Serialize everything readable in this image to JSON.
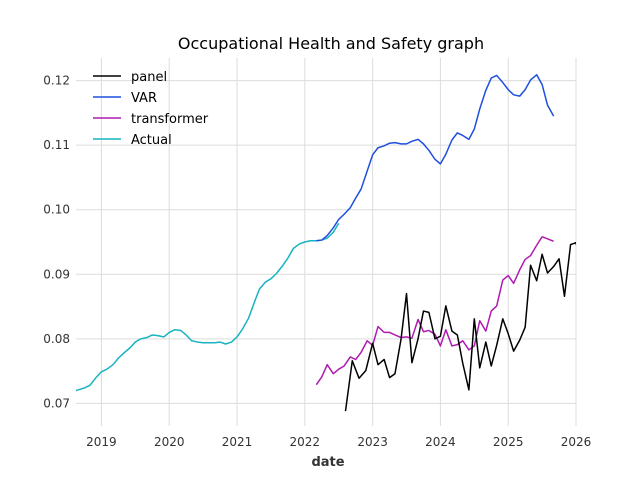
{
  "chart_data": {
    "type": "line",
    "title": "Occupational Health and Safety graph",
    "xlabel": "date",
    "ylabel": "",
    "xlim": [
      2018.625,
      2026.0
    ],
    "ylim": [
      0.0665,
      0.1235
    ],
    "x_ticks": [
      2019,
      2020,
      2021,
      2022,
      2023,
      2024,
      2025,
      2026
    ],
    "x_tick_labels": [
      "2019",
      "2020",
      "2021",
      "2022",
      "2023",
      "2024",
      "2025",
      "2026"
    ],
    "y_ticks": [
      0.07,
      0.08,
      0.09,
      0.1,
      0.11,
      0.12
    ],
    "y_tick_labels": [
      "0.07",
      "0.08",
      "0.09",
      "0.10",
      "0.11",
      "0.12"
    ],
    "grid": true,
    "legend_position": "top-left",
    "series": [
      {
        "name": "panel",
        "color": "#000000",
        "points": [
          [
            2022.6,
            0.0688
          ],
          [
            2022.7,
            0.0766
          ],
          [
            2022.8,
            0.0739
          ],
          [
            2022.9,
            0.0751
          ],
          [
            2023.0,
            0.0793
          ],
          [
            2023.08,
            0.076
          ],
          [
            2023.17,
            0.0768
          ],
          [
            2023.25,
            0.074
          ],
          [
            2023.33,
            0.0746
          ],
          [
            2023.42,
            0.08
          ],
          [
            2023.5,
            0.087
          ],
          [
            2023.58,
            0.0763
          ],
          [
            2023.67,
            0.08
          ],
          [
            2023.75,
            0.0843
          ],
          [
            2023.83,
            0.0841
          ],
          [
            2023.92,
            0.08
          ],
          [
            2024.0,
            0.0804
          ],
          [
            2024.08,
            0.0851
          ],
          [
            2024.17,
            0.0812
          ],
          [
            2024.25,
            0.0806
          ],
          [
            2024.33,
            0.0762
          ],
          [
            2024.42,
            0.0721
          ],
          [
            2024.5,
            0.0831
          ],
          [
            2024.58,
            0.0755
          ],
          [
            2024.67,
            0.0795
          ],
          [
            2024.75,
            0.0758
          ],
          [
            2024.83,
            0.079
          ],
          [
            2024.92,
            0.0831
          ],
          [
            2025.0,
            0.0808
          ],
          [
            2025.08,
            0.0781
          ],
          [
            2025.17,
            0.0798
          ],
          [
            2025.25,
            0.0818
          ],
          [
            2025.33,
            0.0914
          ],
          [
            2025.42,
            0.089
          ],
          [
            2025.5,
            0.0931
          ],
          [
            2025.58,
            0.0902
          ],
          [
            2025.67,
            0.0912
          ],
          [
            2025.75,
            0.0924
          ],
          [
            2025.83,
            0.0866
          ],
          [
            2025.92,
            0.0946
          ],
          [
            2026.0,
            0.0949
          ],
          [
            2026.08,
            0.0915
          ]
        ]
      },
      {
        "name": "VAR",
        "color": "#1f4fe0",
        "points": [
          [
            2022.17,
            0.0952
          ],
          [
            2022.25,
            0.0953
          ],
          [
            2022.33,
            0.096
          ],
          [
            2022.42,
            0.0972
          ],
          [
            2022.5,
            0.0985
          ],
          [
            2022.58,
            0.0993
          ],
          [
            2022.67,
            0.1003
          ],
          [
            2022.75,
            0.1018
          ],
          [
            2022.83,
            0.1032
          ],
          [
            2022.92,
            0.106
          ],
          [
            2023.0,
            0.1085
          ],
          [
            2023.08,
            0.1096
          ],
          [
            2023.17,
            0.1099
          ],
          [
            2023.25,
            0.1103
          ],
          [
            2023.33,
            0.1104
          ],
          [
            2023.42,
            0.1102
          ],
          [
            2023.5,
            0.1102
          ],
          [
            2023.58,
            0.1106
          ],
          [
            2023.67,
            0.1109
          ],
          [
            2023.75,
            0.1102
          ],
          [
            2023.83,
            0.1092
          ],
          [
            2023.92,
            0.1078
          ],
          [
            2024.0,
            0.1071
          ],
          [
            2024.08,
            0.1086
          ],
          [
            2024.17,
            0.1108
          ],
          [
            2024.25,
            0.1119
          ],
          [
            2024.33,
            0.1115
          ],
          [
            2024.42,
            0.1109
          ],
          [
            2024.5,
            0.1125
          ],
          [
            2024.58,
            0.1156
          ],
          [
            2024.67,
            0.1185
          ],
          [
            2024.75,
            0.1204
          ],
          [
            2024.83,
            0.1208
          ],
          [
            2024.92,
            0.1197
          ],
          [
            2025.0,
            0.1186
          ],
          [
            2025.08,
            0.1178
          ],
          [
            2025.17,
            0.1176
          ],
          [
            2025.25,
            0.1186
          ],
          [
            2025.33,
            0.1201
          ],
          [
            2025.42,
            0.1209
          ],
          [
            2025.5,
            0.1194
          ],
          [
            2025.58,
            0.1162
          ],
          [
            2025.67,
            0.1145
          ]
        ]
      },
      {
        "name": "transformer",
        "color": "#b01ab0",
        "points": [
          [
            2022.17,
            0.0729
          ],
          [
            2022.25,
            0.0741
          ],
          [
            2022.33,
            0.076
          ],
          [
            2022.42,
            0.0746
          ],
          [
            2022.5,
            0.0753
          ],
          [
            2022.58,
            0.0758
          ],
          [
            2022.67,
            0.0772
          ],
          [
            2022.75,
            0.0768
          ],
          [
            2022.83,
            0.0779
          ],
          [
            2022.92,
            0.0797
          ],
          [
            2023.0,
            0.079
          ],
          [
            2023.08,
            0.0819
          ],
          [
            2023.17,
            0.081
          ],
          [
            2023.25,
            0.081
          ],
          [
            2023.33,
            0.0806
          ],
          [
            2023.42,
            0.0802
          ],
          [
            2023.5,
            0.0803
          ],
          [
            2023.58,
            0.0801
          ],
          [
            2023.67,
            0.083
          ],
          [
            2023.75,
            0.0811
          ],
          [
            2023.83,
            0.0813
          ],
          [
            2023.92,
            0.0807
          ],
          [
            2024.0,
            0.0789
          ],
          [
            2024.08,
            0.0814
          ],
          [
            2024.17,
            0.0789
          ],
          [
            2024.25,
            0.0791
          ],
          [
            2024.33,
            0.0797
          ],
          [
            2024.42,
            0.0783
          ],
          [
            2024.5,
            0.0789
          ],
          [
            2024.58,
            0.0828
          ],
          [
            2024.67,
            0.0812
          ],
          [
            2024.75,
            0.0843
          ],
          [
            2024.83,
            0.0851
          ],
          [
            2024.92,
            0.0891
          ],
          [
            2025.0,
            0.0898
          ],
          [
            2025.08,
            0.0886
          ],
          [
            2025.17,
            0.0907
          ],
          [
            2025.25,
            0.0923
          ],
          [
            2025.33,
            0.0929
          ],
          [
            2025.42,
            0.0945
          ],
          [
            2025.5,
            0.0958
          ],
          [
            2025.58,
            0.0955
          ],
          [
            2025.67,
            0.0951
          ]
        ]
      },
      {
        "name": "Actual",
        "color": "#17b3c2",
        "points": [
          [
            2018.625,
            0.072
          ],
          [
            2018.75,
            0.0724
          ],
          [
            2018.83,
            0.0728
          ],
          [
            2018.92,
            0.074
          ],
          [
            2019.0,
            0.0749
          ],
          [
            2019.08,
            0.0753
          ],
          [
            2019.17,
            0.076
          ],
          [
            2019.25,
            0.077
          ],
          [
            2019.33,
            0.0778
          ],
          [
            2019.42,
            0.0786
          ],
          [
            2019.5,
            0.0795
          ],
          [
            2019.58,
            0.08
          ],
          [
            2019.67,
            0.0802
          ],
          [
            2019.75,
            0.0806
          ],
          [
            2019.83,
            0.0805
          ],
          [
            2019.92,
            0.0803
          ],
          [
            2020.0,
            0.081
          ],
          [
            2020.08,
            0.0814
          ],
          [
            2020.17,
            0.0813
          ],
          [
            2020.25,
            0.0806
          ],
          [
            2020.33,
            0.0797
          ],
          [
            2020.42,
            0.0795
          ],
          [
            2020.5,
            0.0794
          ],
          [
            2020.58,
            0.0794
          ],
          [
            2020.67,
            0.0794
          ],
          [
            2020.75,
            0.0795
          ],
          [
            2020.83,
            0.0792
          ],
          [
            2020.92,
            0.0795
          ],
          [
            2021.0,
            0.0803
          ],
          [
            2021.08,
            0.0815
          ],
          [
            2021.17,
            0.0832
          ],
          [
            2021.25,
            0.0855
          ],
          [
            2021.33,
            0.0877
          ],
          [
            2021.42,
            0.0888
          ],
          [
            2021.5,
            0.0893
          ],
          [
            2021.58,
            0.0901
          ],
          [
            2021.67,
            0.0913
          ],
          [
            2021.75,
            0.0925
          ],
          [
            2021.83,
            0.094
          ],
          [
            2021.92,
            0.0947
          ],
          [
            2022.0,
            0.095
          ],
          [
            2022.08,
            0.0952
          ],
          [
            2022.17,
            0.0952
          ],
          [
            2022.25,
            0.0953
          ],
          [
            2022.33,
            0.0956
          ],
          [
            2022.42,
            0.0965
          ],
          [
            2022.5,
            0.0979
          ]
        ]
      }
    ]
  }
}
